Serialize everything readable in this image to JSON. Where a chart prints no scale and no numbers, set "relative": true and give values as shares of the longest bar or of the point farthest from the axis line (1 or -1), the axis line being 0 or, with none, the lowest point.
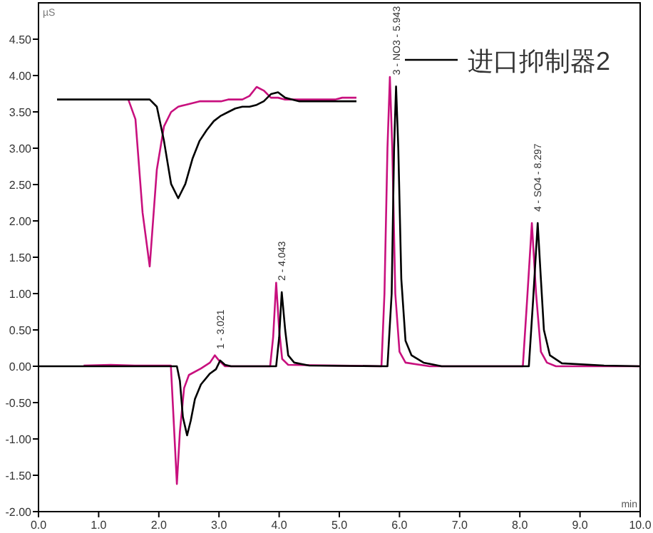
{
  "chart_data": [
    {
      "type": "line",
      "xlabel": "min",
      "ylabel": "µS",
      "xlim": [
        0,
        10
      ],
      "ylim": [
        -2,
        5
      ],
      "xticks": [
        {
          "value": 0,
          "label": "0.0"
        },
        {
          "value": 1,
          "label": "1.0"
        },
        {
          "value": 2,
          "label": "2.0"
        },
        {
          "value": 3,
          "label": "3.0"
        },
        {
          "value": 4,
          "label": "4.0"
        },
        {
          "value": 5,
          "label": "5.0"
        },
        {
          "value": 6,
          "label": "6.0"
        },
        {
          "value": 7,
          "label": "7.0"
        },
        {
          "value": 8,
          "label": "8.0"
        },
        {
          "value": 9,
          "label": "9.0"
        },
        {
          "value": 10,
          "label": "10.0"
        }
      ],
      "yticks": [
        {
          "value": -2,
          "label": "-2.00"
        },
        {
          "value": -1.5,
          "label": "-1.50"
        },
        {
          "value": -1,
          "label": "-1.00"
        },
        {
          "value": -0.5,
          "label": "-0.50"
        },
        {
          "value": 0,
          "label": "0.00"
        },
        {
          "value": 0.5,
          "label": "0.50"
        },
        {
          "value": 1,
          "label": "1.00"
        },
        {
          "value": 1.5,
          "label": "1.50"
        },
        {
          "value": 2,
          "label": "2.00"
        },
        {
          "value": 2.5,
          "label": "2.50"
        },
        {
          "value": 3,
          "label": "3.00"
        },
        {
          "value": 3.5,
          "label": "3.50"
        },
        {
          "value": 4,
          "label": "4.00"
        },
        {
          "value": 4.5,
          "label": "4.50"
        }
      ],
      "legend": "top right",
      "grid": false,
      "annotations": [
        {
          "text": "1 - 3.021",
          "x": 3.021,
          "y": 0.08
        },
        {
          "text": "2 - 4.043",
          "x": 4.043,
          "y": 1.02
        },
        {
          "text": "3 - NO3 - 5.943",
          "x": 5.943,
          "y": 3.85
        },
        {
          "text": "4 - SO4 - 8.297",
          "x": 8.297,
          "y": 1.97
        }
      ],
      "series": [
        {
          "color": "#c8107e",
          "x": [
            0.75,
            1.2,
            1.6,
            2.2,
            2.25,
            2.3,
            2.35,
            2.42,
            2.5,
            2.7,
            2.85,
            2.93,
            3.0,
            3.1,
            3.85,
            3.9,
            3.95,
            4.0,
            4.05,
            4.15,
            5.7,
            5.75,
            5.8,
            5.84,
            5.88,
            5.93,
            6.0,
            6.1,
            6.5,
            8.05,
            8.12,
            8.2,
            8.27,
            8.35,
            8.45,
            8.6,
            10
          ],
          "values": [
            0.01,
            0.02,
            0.01,
            0.01,
            -0.8,
            -1.62,
            -0.9,
            -0.3,
            -0.12,
            -0.03,
            0.05,
            0.15,
            0.08,
            0,
            0,
            0.4,
            1.15,
            0.5,
            0.1,
            0.02,
            0,
            1.0,
            3.0,
            3.98,
            3.0,
            1.0,
            0.2,
            0.05,
            0,
            0,
            0.9,
            1.97,
            1.0,
            0.2,
            0.05,
            0,
            0
          ]
        },
        {
          "name": "进口抑制器2",
          "color": "#000000",
          "x": [
            0,
            2.3,
            2.35,
            2.4,
            2.47,
            2.53,
            2.6,
            2.7,
            2.85,
            2.95,
            3.02,
            3.1,
            3.2,
            3.95,
            4.0,
            4.043,
            4.1,
            4.15,
            4.25,
            4.5,
            5.8,
            5.87,
            5.91,
            5.943,
            5.98,
            6.03,
            6.1,
            6.2,
            6.4,
            6.7,
            8.15,
            8.22,
            8.297,
            8.35,
            8.4,
            8.5,
            8.7,
            9.4,
            10
          ],
          "values": [
            0,
            0,
            -0.2,
            -0.7,
            -0.95,
            -0.75,
            -0.45,
            -0.25,
            -0.1,
            -0.04,
            0.08,
            0.02,
            0,
            0,
            0.4,
            1.02,
            0.5,
            0.15,
            0.05,
            0.01,
            0,
            1.0,
            3.0,
            3.85,
            3.0,
            1.2,
            0.35,
            0.15,
            0.05,
            0,
            0,
            0.9,
            1.97,
            1.2,
            0.5,
            0.15,
            0.04,
            0.01,
            0
          ]
        }
      ]
    },
    {
      "type": "line",
      "relative": true,
      "categories": [
        null,
        null,
        null,
        null,
        null,
        null,
        null,
        null,
        null,
        null,
        null,
        null,
        null,
        null,
        null,
        null,
        null,
        null,
        null,
        null,
        null,
        null,
        null,
        null,
        null,
        null,
        null,
        null,
        null,
        null,
        null,
        null,
        null,
        null,
        null,
        null,
        null,
        null,
        null,
        null,
        null,
        null,
        null
      ],
      "series": [
        {
          "color": "#c8107e",
          "values": [
            null,
            null,
            null,
            null,
            null,
            null,
            null,
            null,
            null,
            null,
            0.93,
            0.82,
            0.3,
            0,
            0.54,
            0.78,
            0.86,
            0.89,
            0.9,
            0.91,
            0.92,
            0.92,
            0.92,
            0.92,
            0.93,
            0.93,
            0.93,
            0.95,
            1.0,
            0.98,
            0.94,
            0.94,
            0.93,
            0.93,
            0.93,
            0.93,
            0.93,
            0.93,
            0.93,
            0.93,
            0.94,
            0.94,
            0.94
          ]
        },
        {
          "color": "#000000",
          "values": [
            0.93,
            0.93,
            0.93,
            0.93,
            0.93,
            0.93,
            0.93,
            0.93,
            0.93,
            0.93,
            0.93,
            0.93,
            0.93,
            0.93,
            0.89,
            0.7,
            0.46,
            0.38,
            0.46,
            0.6,
            0.7,
            0.76,
            0.81,
            0.84,
            0.86,
            0.88,
            0.89,
            0.89,
            0.9,
            0.92,
            0.96,
            0.97,
            0.94,
            0.93,
            0.92,
            0.92,
            0.92,
            0.92,
            0.92,
            0.92,
            0.92,
            0.92,
            0.92
          ]
        }
      ]
    }
  ]
}
